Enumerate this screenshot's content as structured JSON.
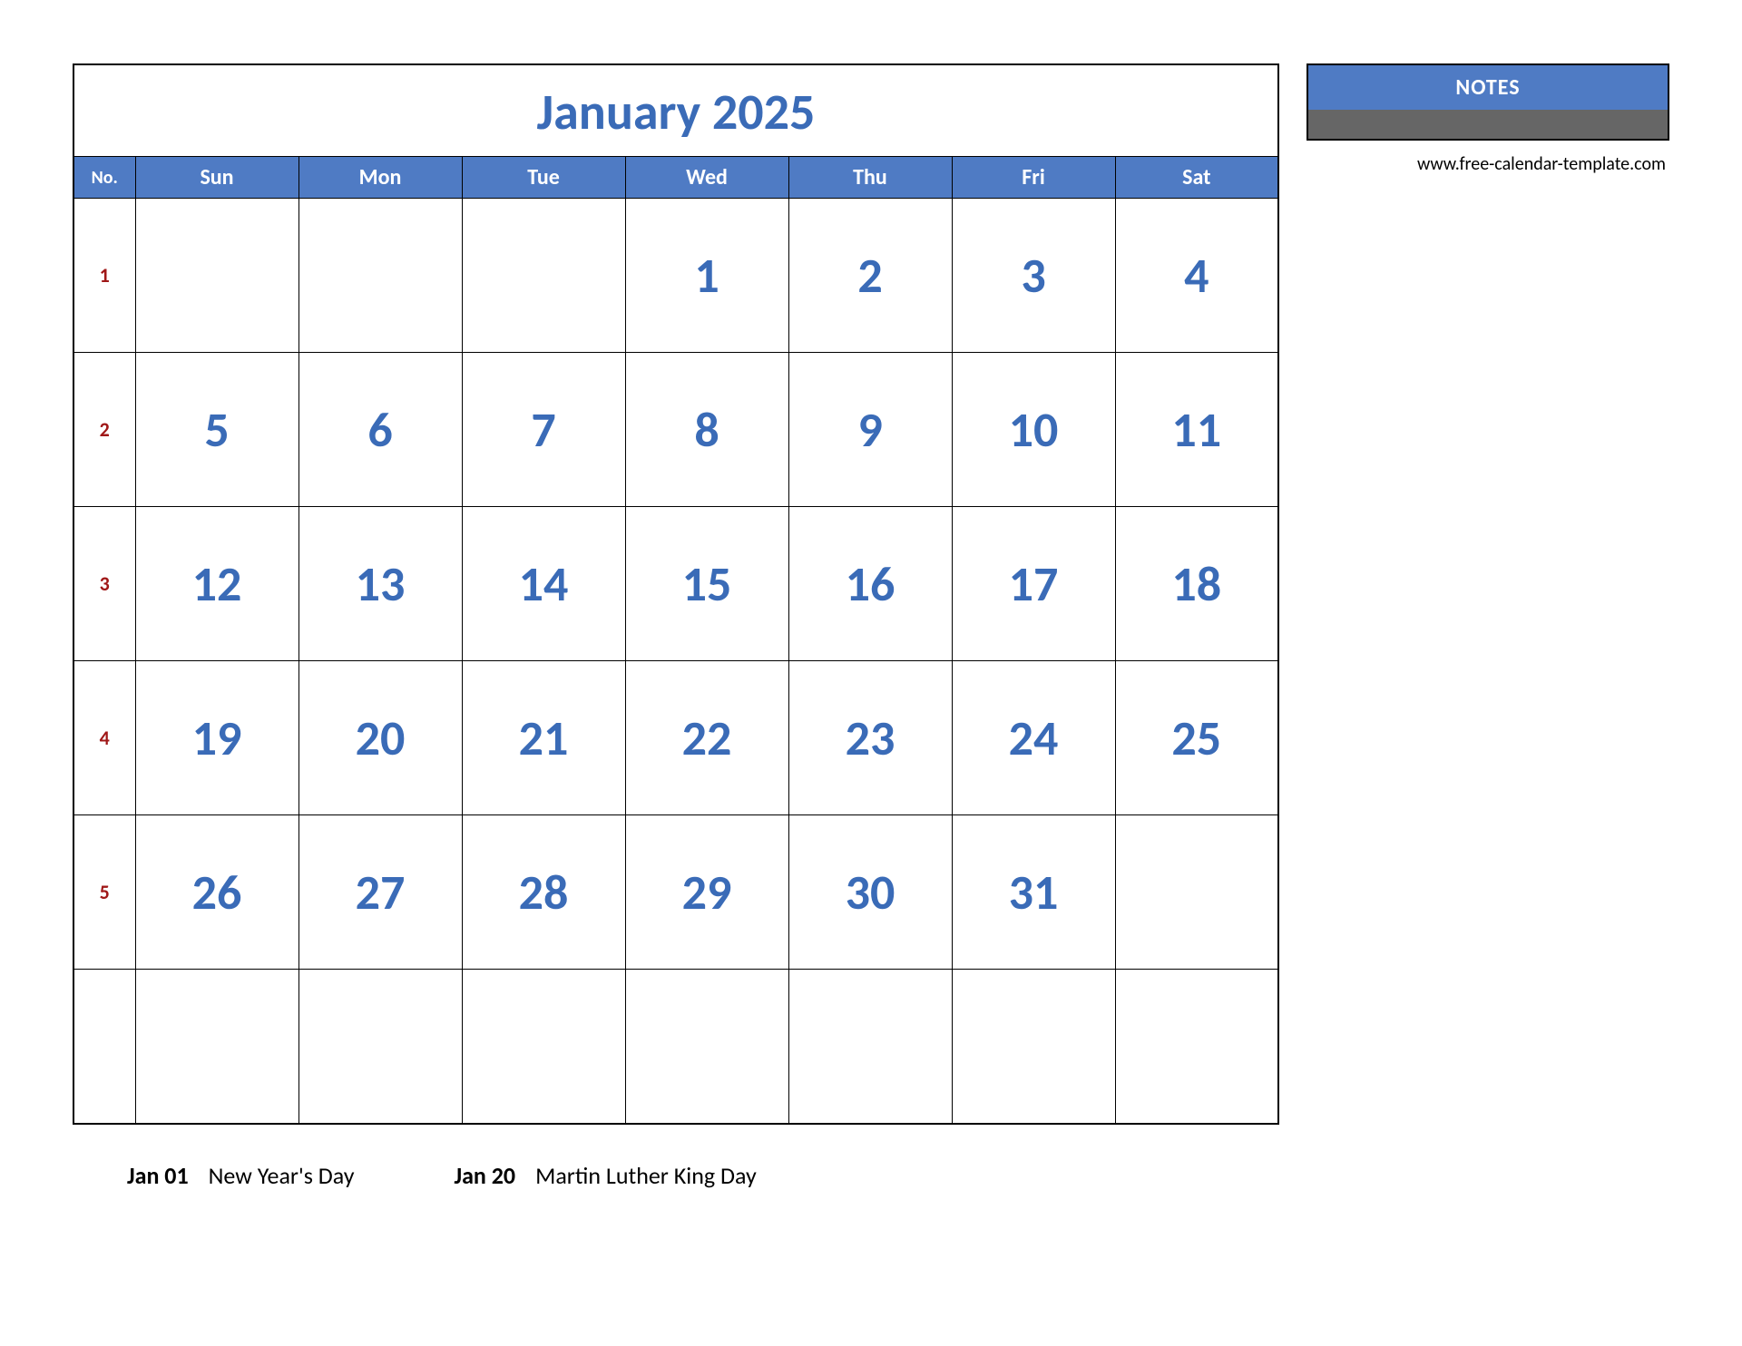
{
  "calendar": {
    "title": "January 2025",
    "title_color": "#3a6bb7",
    "header_bg": "#4f7bc4",
    "header_text_color": "#ffffff",
    "no_label": "No.",
    "day_headers": [
      "Sun",
      "Mon",
      "Tue",
      "Wed",
      "Thu",
      "Fri",
      "Sat"
    ],
    "week_no_color": "#a01818",
    "day_number_color": "#3a6bb7",
    "border_color": "#000000",
    "background_color": "#ffffff",
    "weeks": [
      {
        "no": "1",
        "days": [
          "",
          "",
          "",
          "1",
          "2",
          "3",
          "4"
        ]
      },
      {
        "no": "2",
        "days": [
          "5",
          "6",
          "7",
          "8",
          "9",
          "10",
          "11"
        ]
      },
      {
        "no": "3",
        "days": [
          "12",
          "13",
          "14",
          "15",
          "16",
          "17",
          "18"
        ]
      },
      {
        "no": "4",
        "days": [
          "19",
          "20",
          "21",
          "22",
          "23",
          "24",
          "25"
        ]
      },
      {
        "no": "5",
        "days": [
          "26",
          "27",
          "28",
          "29",
          "30",
          "31",
          ""
        ]
      },
      {
        "no": "",
        "days": [
          "",
          "",
          "",
          "",
          "",
          "",
          ""
        ]
      }
    ]
  },
  "notes": {
    "label": "NOTES",
    "header_bg": "#4f7bc4",
    "header_text_color": "#ffffff",
    "line_count": 32,
    "line_color": "#666666"
  },
  "footer": {
    "url": "www.free-calendar-template.com"
  },
  "holidays": [
    {
      "date": "Jan 01",
      "name": "New Year's Day"
    },
    {
      "date": "Jan 20",
      "name": "Martin Luther King Day"
    }
  ]
}
